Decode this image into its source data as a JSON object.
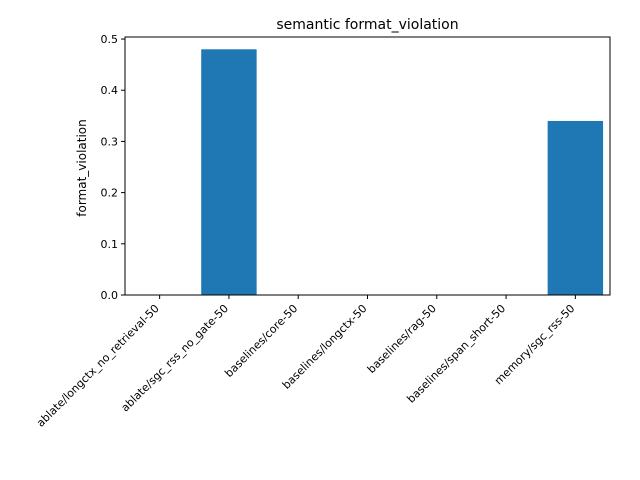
{
  "chart_data": {
    "type": "bar",
    "title": "semantic format_violation",
    "xlabel": "",
    "ylabel": "format_violation",
    "categories": [
      "ablate/longctx_no_retrieval-50",
      "ablate/sgc_rss_no_gate-50",
      "baselines/core-50",
      "baselines/longctx-50",
      "baselines/rag-50",
      "baselines/span_short-50",
      "memory/sgc_rss-50"
    ],
    "values": [
      0.0,
      0.48,
      0.0,
      0.0,
      0.0,
      0.0,
      0.34
    ],
    "ylim": [
      0,
      0.504
    ],
    "yticks": [
      0.0,
      0.1,
      0.2,
      0.3,
      0.4,
      0.5
    ],
    "ytick_labels": [
      "0.0",
      "0.1",
      "0.2",
      "0.3",
      "0.4",
      "0.5"
    ],
    "grid": false,
    "bar_color": "#1f77b4"
  }
}
